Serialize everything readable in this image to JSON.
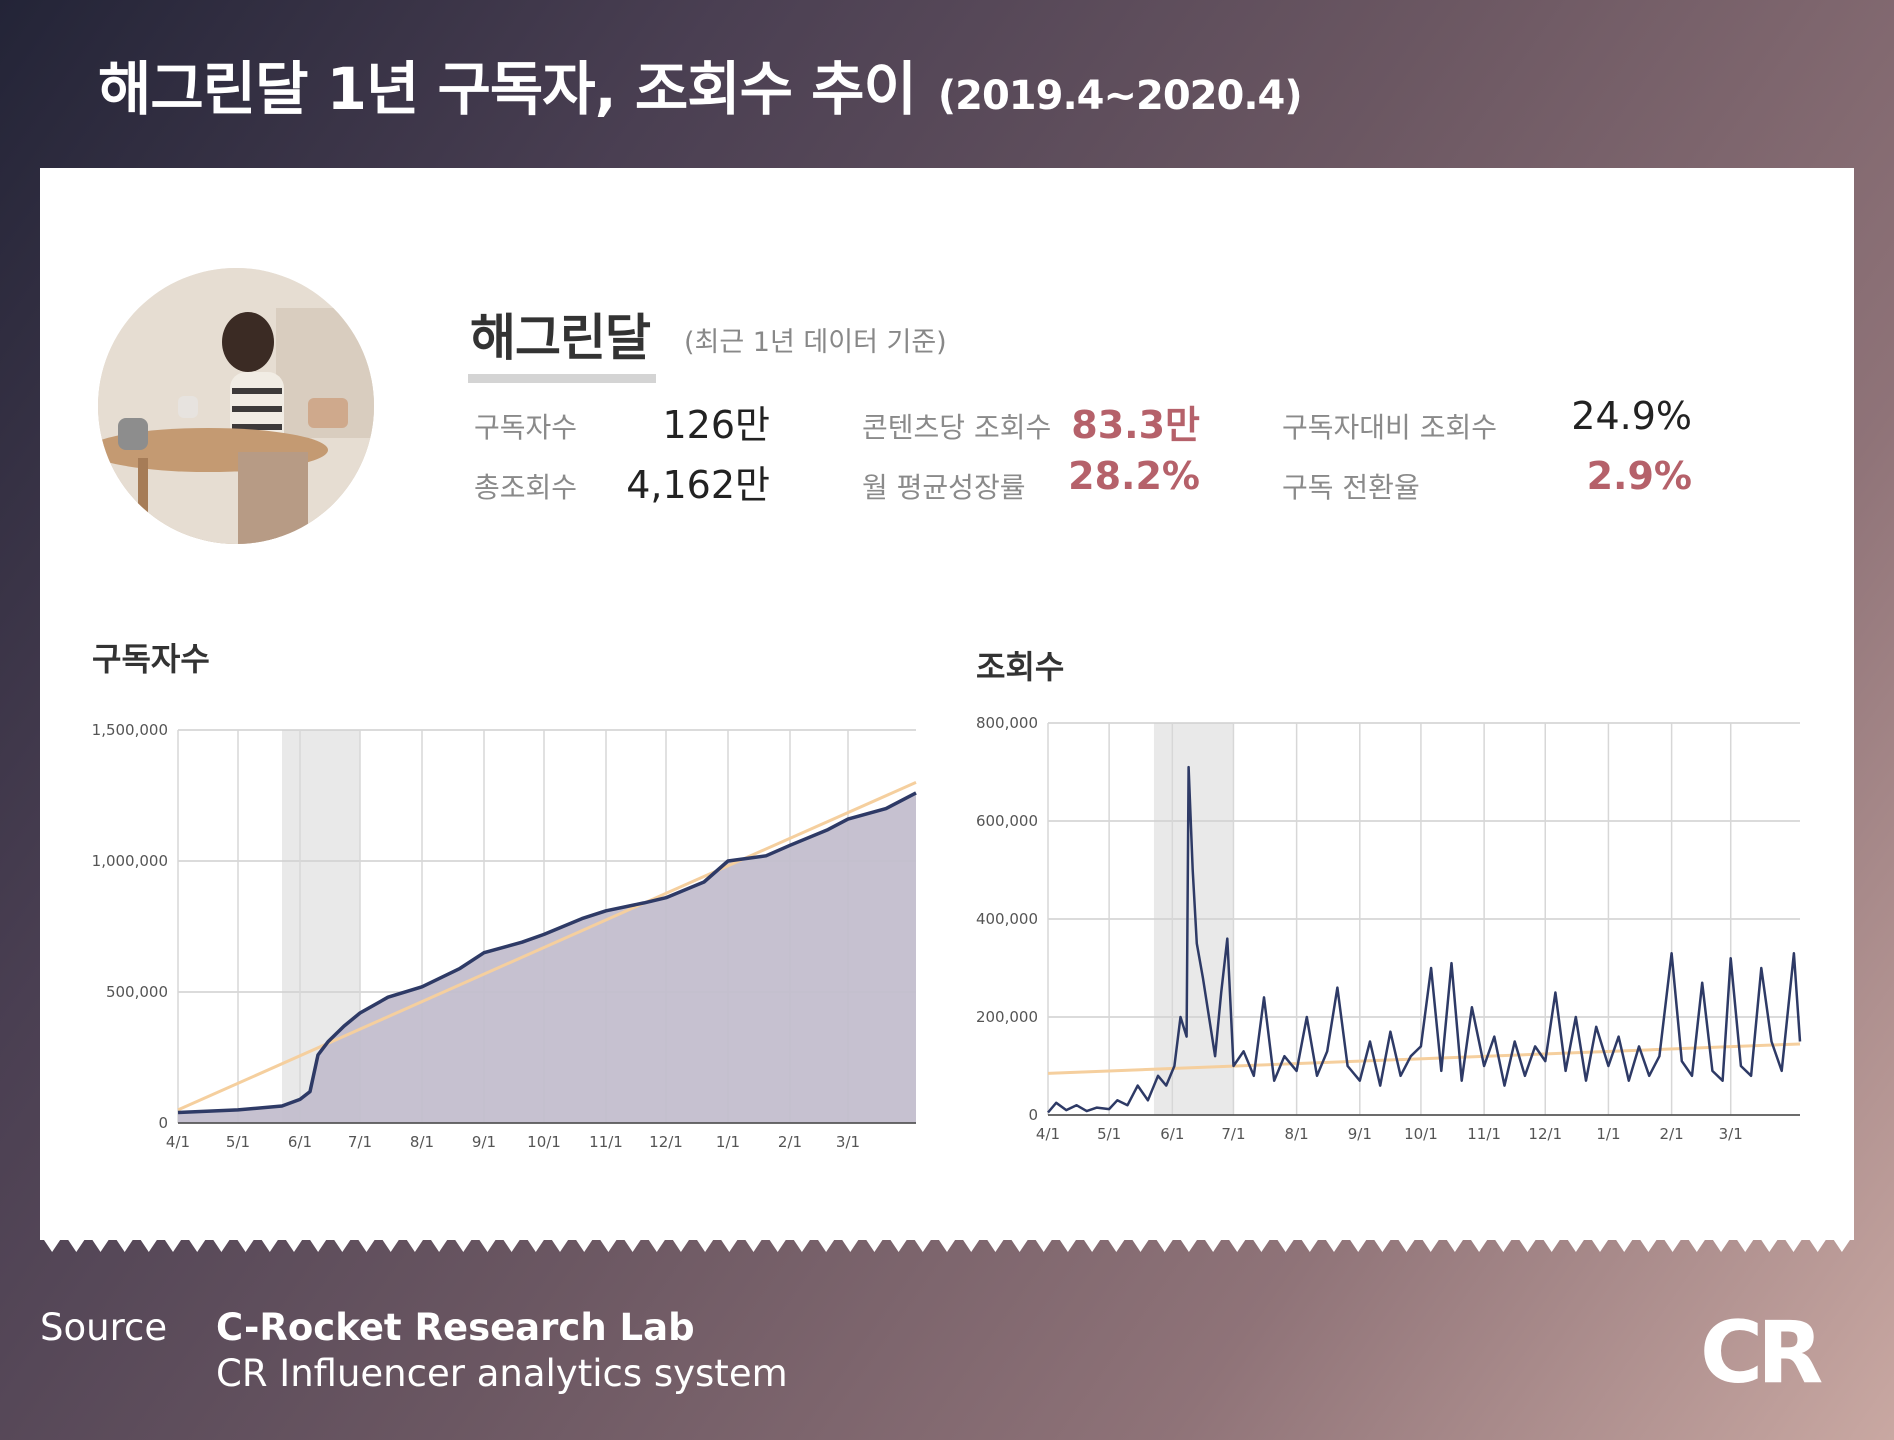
{
  "page": {
    "title": "해그린달 1년 구독자, 조회수 추이",
    "period": "(2019.4~2020.4)"
  },
  "channel": {
    "name": "해그린달",
    "note": "(최근 1년 데이터 기준)"
  },
  "stats": [
    {
      "label": "구독자수",
      "value": "126만",
      "highlight": false
    },
    {
      "label": "총조회수",
      "value": "4,162만",
      "highlight": false
    },
    {
      "label": "콘텐츠당 조회수",
      "value": "83.3만",
      "highlight": true
    },
    {
      "label": "월 평균성장률",
      "value": "28.2%",
      "highlight": true
    },
    {
      "label": "구독자대비 조회수",
      "value": "24.9%",
      "highlight": false
    },
    {
      "label": "구독 전환율",
      "value": "2.9%",
      "highlight": true
    }
  ],
  "colors": {
    "line": "#2e3a66",
    "area": "#c3bece",
    "trend": "#f5cf9e",
    "highlight_band": "#e9e9e9",
    "accent": "#b5616a"
  },
  "chart_data": [
    {
      "type": "area",
      "title": "구독자수",
      "x_ticks": [
        "5/1",
        "6/1",
        "7/1",
        "8/1",
        "9/1",
        "10/1",
        "11/1",
        "12/1",
        "1/1",
        "2/1",
        "3/1",
        "4/1"
      ],
      "y_ticks": [
        "0",
        "500,000",
        "1,000,000",
        "1,500,000"
      ],
      "ylim": [
        0,
        1500000
      ],
      "x_range": [
        "2019-04-01",
        "2020-04-04"
      ],
      "shaded_range": [
        "2019-05-23",
        "2019-07-01"
      ],
      "series": [
        {
          "points": [
            [
              "2019-04-01",
              40000
            ],
            [
              "2019-05-01",
              50000
            ],
            [
              "2019-05-23",
              65000
            ],
            [
              "2019-06-01",
              90000
            ],
            [
              "2019-06-06",
              120000
            ],
            [
              "2019-06-10",
              260000
            ],
            [
              "2019-06-15",
              310000
            ],
            [
              "2019-06-23",
              370000
            ],
            [
              "2019-07-01",
              420000
            ],
            [
              "2019-07-15",
              480000
            ],
            [
              "2019-08-01",
              520000
            ],
            [
              "2019-08-20",
              590000
            ],
            [
              "2019-09-01",
              650000
            ],
            [
              "2019-09-20",
              690000
            ],
            [
              "2019-10-01",
              720000
            ],
            [
              "2019-10-20",
              780000
            ],
            [
              "2019-11-01",
              810000
            ],
            [
              "2019-11-20",
              840000
            ],
            [
              "2019-12-01",
              860000
            ],
            [
              "2019-12-20",
              920000
            ],
            [
              "2020-01-01",
              1000000
            ],
            [
              "2020-01-20",
              1020000
            ],
            [
              "2020-02-01",
              1060000
            ],
            [
              "2020-02-20",
              1120000
            ],
            [
              "2020-03-01",
              1160000
            ],
            [
              "2020-03-20",
              1200000
            ],
            [
              "2020-04-04",
              1260000
            ]
          ]
        }
      ],
      "trend": [
        [
          "2019-04-01",
          50000
        ],
        [
          "2020-04-04",
          1300000
        ]
      ]
    },
    {
      "type": "line",
      "title": "조회수",
      "x_ticks": [
        "5/1",
        "6/1",
        "7/1",
        "8/1",
        "9/1",
        "10/1",
        "11/1",
        "12/1",
        "1/1",
        "2/1",
        "3/1",
        "4/1"
      ],
      "y_ticks": [
        "0",
        "200,000",
        "400,000",
        "600,000",
        "800,000"
      ],
      "ylim": [
        0,
        800000
      ],
      "x_range": [
        "2019-04-01",
        "2020-04-04"
      ],
      "shaded_range": [
        "2019-05-23",
        "2019-07-01"
      ],
      "series": [
        {
          "points": [
            [
              "2019-04-01",
              5000
            ],
            [
              "2019-04-05",
              25000
            ],
            [
              "2019-04-10",
              10000
            ],
            [
              "2019-04-15",
              20000
            ],
            [
              "2019-04-20",
              8000
            ],
            [
              "2019-04-25",
              15000
            ],
            [
              "2019-05-01",
              12000
            ],
            [
              "2019-05-05",
              30000
            ],
            [
              "2019-05-10",
              20000
            ],
            [
              "2019-05-15",
              60000
            ],
            [
              "2019-05-20",
              30000
            ],
            [
              "2019-05-25",
              80000
            ],
            [
              "2019-05-29",
              60000
            ],
            [
              "2019-06-02",
              100000
            ],
            [
              "2019-06-05",
              200000
            ],
            [
              "2019-06-08",
              160000
            ],
            [
              "2019-06-09",
              710000
            ],
            [
              "2019-06-11",
              500000
            ],
            [
              "2019-06-13",
              350000
            ],
            [
              "2019-06-16",
              280000
            ],
            [
              "2019-06-19",
              200000
            ],
            [
              "2019-06-22",
              120000
            ],
            [
              "2019-06-25",
              250000
            ],
            [
              "2019-06-28",
              360000
            ],
            [
              "2019-07-01",
              100000
            ],
            [
              "2019-07-06",
              130000
            ],
            [
              "2019-07-11",
              80000
            ],
            [
              "2019-07-16",
              240000
            ],
            [
              "2019-07-21",
              70000
            ],
            [
              "2019-07-26",
              120000
            ],
            [
              "2019-08-01",
              90000
            ],
            [
              "2019-08-06",
              200000
            ],
            [
              "2019-08-11",
              80000
            ],
            [
              "2019-08-16",
              130000
            ],
            [
              "2019-08-21",
              260000
            ],
            [
              "2019-08-26",
              100000
            ],
            [
              "2019-09-01",
              70000
            ],
            [
              "2019-09-06",
              150000
            ],
            [
              "2019-09-11",
              60000
            ],
            [
              "2019-09-16",
              170000
            ],
            [
              "2019-09-21",
              80000
            ],
            [
              "2019-09-26",
              120000
            ],
            [
              "2019-10-01",
              140000
            ],
            [
              "2019-10-06",
              300000
            ],
            [
              "2019-10-11",
              90000
            ],
            [
              "2019-10-16",
              310000
            ],
            [
              "2019-10-21",
              70000
            ],
            [
              "2019-10-26",
              220000
            ],
            [
              "2019-11-01",
              100000
            ],
            [
              "2019-11-06",
              160000
            ],
            [
              "2019-11-11",
              60000
            ],
            [
              "2019-11-16",
              150000
            ],
            [
              "2019-11-21",
              80000
            ],
            [
              "2019-11-26",
              140000
            ],
            [
              "2019-12-01",
              110000
            ],
            [
              "2019-12-06",
              250000
            ],
            [
              "2019-12-11",
              90000
            ],
            [
              "2019-12-16",
              200000
            ],
            [
              "2019-12-21",
              70000
            ],
            [
              "2019-12-26",
              180000
            ],
            [
              "2020-01-01",
              100000
            ],
            [
              "2020-01-06",
              160000
            ],
            [
              "2020-01-11",
              70000
            ],
            [
              "2020-01-16",
              140000
            ],
            [
              "2020-01-21",
              80000
            ],
            [
              "2020-01-26",
              120000
            ],
            [
              "2020-02-01",
              330000
            ],
            [
              "2020-02-06",
              110000
            ],
            [
              "2020-02-11",
              80000
            ],
            [
              "2020-02-16",
              270000
            ],
            [
              "2020-02-21",
              90000
            ],
            [
              "2020-02-26",
              70000
            ],
            [
              "2020-03-01",
              320000
            ],
            [
              "2020-03-06",
              100000
            ],
            [
              "2020-03-11",
              80000
            ],
            [
              "2020-03-16",
              300000
            ],
            [
              "2020-03-21",
              150000
            ],
            [
              "2020-03-26",
              90000
            ],
            [
              "2020-04-01",
              330000
            ],
            [
              "2020-04-04",
              150000
            ]
          ]
        }
      ],
      "trend": [
        [
          "2019-04-01",
          85000
        ],
        [
          "2020-04-04",
          145000
        ]
      ]
    }
  ],
  "footer": {
    "source_label": "Source",
    "org": "C-Rocket Research Lab",
    "system": "CR Influencer analytics system",
    "logo_text": "CR"
  }
}
